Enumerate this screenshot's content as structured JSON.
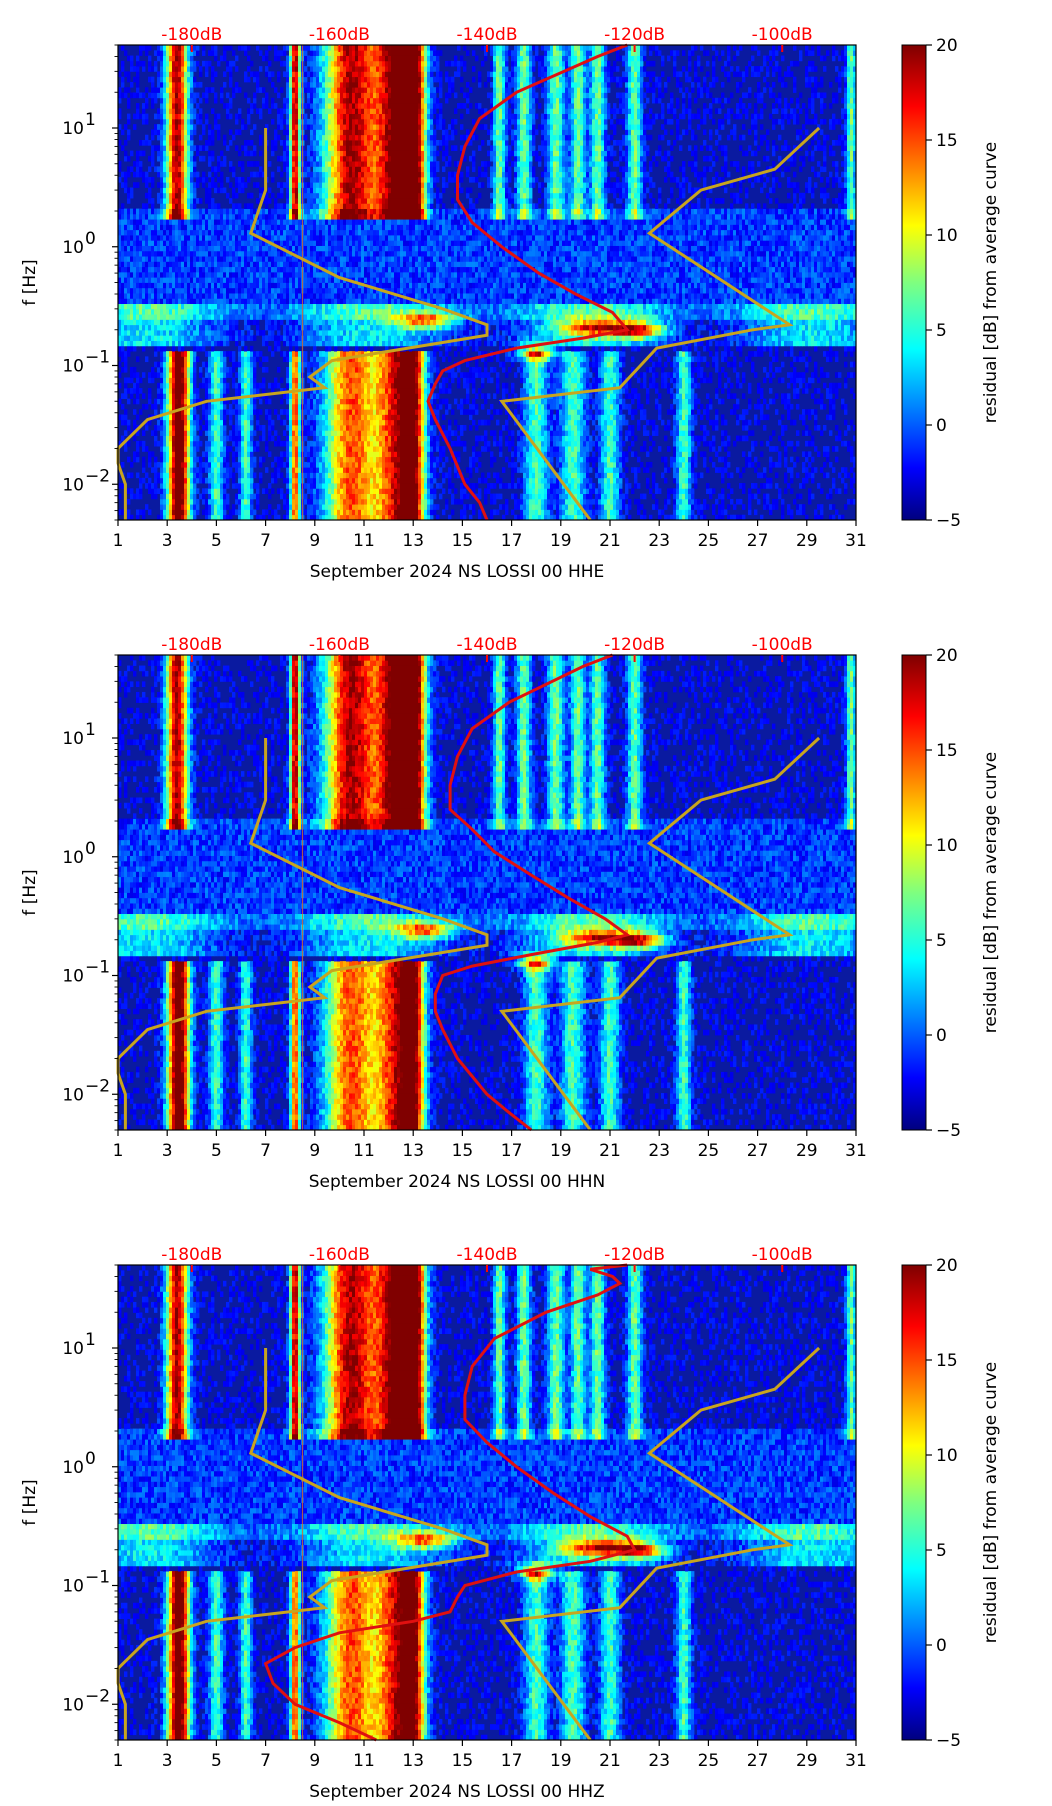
{
  "chart_data": [
    {
      "type": "heatmap",
      "title": "",
      "xlabel": "September 2024 NS LOSSI 00 HHE",
      "ylabel": "f [Hz]",
      "colorbar_label": "residual [dB] from average curve",
      "x_ticks": [
        "1",
        "3",
        "5",
        "7",
        "9",
        "11",
        "13",
        "15",
        "17",
        "19",
        "21",
        "23",
        "25",
        "27",
        "29",
        "31"
      ],
      "x_range": [
        1,
        31
      ],
      "y_scale": "log",
      "y_range": [
        0.005,
        50
      ],
      "y_ticks": [
        {
          "value": 0.01,
          "base": "10",
          "exp": "−2"
        },
        {
          "value": 0.1,
          "base": "10",
          "exp": "−1"
        },
        {
          "value": 1,
          "base": "10",
          "exp": "0"
        },
        {
          "value": 10,
          "base": "10",
          "exp": "1"
        }
      ],
      "top_axis_ticks": [
        "-180dB",
        "-160dB",
        "-140dB",
        "-120dB",
        "-100dB"
      ],
      "top_axis_values": [
        -180,
        -160,
        -140,
        -120,
        -100
      ],
      "color_range": [
        -5,
        20
      ],
      "colorbar_ticks": [
        "−5",
        "0",
        "5",
        "10",
        "15",
        "20"
      ],
      "colorbar_values": [
        -5,
        0,
        5,
        10,
        15,
        20
      ],
      "colormap": "jet",
      "red_curve_db_vs_freq": [
        [
          -140,
          0.005
        ],
        [
          -141,
          0.007
        ],
        [
          -143,
          0.01
        ],
        [
          -145,
          0.02
        ],
        [
          -147,
          0.035
        ],
        [
          -148,
          0.05
        ],
        [
          -147,
          0.07
        ],
        [
          -146,
          0.09
        ],
        [
          -143,
          0.11
        ],
        [
          -136,
          0.14
        ],
        [
          -127,
          0.17
        ],
        [
          -121,
          0.2
        ],
        [
          -123,
          0.28
        ],
        [
          -128,
          0.4
        ],
        [
          -133,
          0.6
        ],
        [
          -138,
          1.0
        ],
        [
          -142,
          1.6
        ],
        [
          -144,
          2.5
        ],
        [
          -144,
          4
        ],
        [
          -143,
          7
        ],
        [
          -141,
          12
        ],
        [
          -136,
          20
        ],
        [
          -125,
          40
        ],
        [
          -121,
          50
        ]
      ],
      "gold_curve_db_vs_freq": [
        [
          -189,
          0.005
        ],
        [
          -189,
          0.01
        ],
        [
          -190,
          0.015
        ],
        [
          -190,
          0.02
        ],
        [
          -186,
          0.035
        ],
        [
          -178,
          0.05
        ],
        [
          -162,
          0.065
        ],
        [
          -164,
          0.08
        ],
        [
          -161,
          0.11
        ],
        [
          -140,
          0.18
        ],
        [
          -140,
          0.22
        ],
        [
          -146,
          0.3
        ],
        [
          -160,
          0.55
        ],
        [
          -172,
          1.3
        ],
        [
          -170,
          3
        ],
        [
          -170,
          10
        ]
      ],
      "gold_curve2_db_vs_freq": [
        [
          -126,
          0.005
        ],
        [
          -138,
          0.05
        ],
        [
          -122,
          0.065
        ],
        [
          -117,
          0.14
        ],
        [
          -104,
          0.2
        ],
        [
          -99,
          0.22
        ],
        [
          -118,
          1.3
        ],
        [
          -111,
          3
        ],
        [
          -101,
          4.5
        ],
        [
          -95,
          10
        ]
      ],
      "vertical_marker_day": 8.5
    },
    {
      "type": "heatmap",
      "title": "",
      "xlabel": "September 2024 NS LOSSI 00 HHN",
      "ylabel": "f [Hz]",
      "colorbar_label": "residual [dB] from average curve",
      "x_ticks": [
        "1",
        "3",
        "5",
        "7",
        "9",
        "11",
        "13",
        "15",
        "17",
        "19",
        "21",
        "23",
        "25",
        "27",
        "29",
        "31"
      ],
      "x_range": [
        1,
        31
      ],
      "y_scale": "log",
      "y_range": [
        0.005,
        50
      ],
      "y_ticks": [
        {
          "value": 0.01,
          "base": "10",
          "exp": "−2"
        },
        {
          "value": 0.1,
          "base": "10",
          "exp": "−1"
        },
        {
          "value": 1,
          "base": "10",
          "exp": "0"
        },
        {
          "value": 10,
          "base": "10",
          "exp": "1"
        }
      ],
      "top_axis_ticks": [
        "-180dB",
        "-160dB",
        "-140dB",
        "-120dB",
        "-100dB"
      ],
      "top_axis_values": [
        -180,
        -160,
        -140,
        -120,
        -100
      ],
      "color_range": [
        -5,
        20
      ],
      "colorbar_ticks": [
        "−5",
        "0",
        "5",
        "10",
        "15",
        "20"
      ],
      "colorbar_values": [
        -5,
        0,
        5,
        10,
        15,
        20
      ],
      "colormap": "jet",
      "red_curve_db_vs_freq": [
        [
          -134,
          0.005
        ],
        [
          -137,
          0.007
        ],
        [
          -140,
          0.01
        ],
        [
          -144,
          0.02
        ],
        [
          -146,
          0.035
        ],
        [
          -147,
          0.05
        ],
        [
          -147,
          0.07
        ],
        [
          -146,
          0.1
        ],
        [
          -142,
          0.12
        ],
        [
          -134,
          0.15
        ],
        [
          -125,
          0.19
        ],
        [
          -121,
          0.22
        ],
        [
          -124,
          0.3
        ],
        [
          -129,
          0.45
        ],
        [
          -134,
          0.7
        ],
        [
          -139,
          1.1
        ],
        [
          -142,
          1.7
        ],
        [
          -145,
          2.5
        ],
        [
          -145,
          4
        ],
        [
          -144,
          7
        ],
        [
          -142,
          12
        ],
        [
          -137,
          20
        ],
        [
          -127,
          40
        ],
        [
          -123,
          50
        ]
      ],
      "gold_curve_db_vs_freq": [
        [
          -189,
          0.005
        ],
        [
          -189,
          0.01
        ],
        [
          -190,
          0.015
        ],
        [
          -190,
          0.02
        ],
        [
          -186,
          0.035
        ],
        [
          -178,
          0.05
        ],
        [
          -162,
          0.065
        ],
        [
          -164,
          0.08
        ],
        [
          -161,
          0.11
        ],
        [
          -140,
          0.18
        ],
        [
          -140,
          0.22
        ],
        [
          -146,
          0.3
        ],
        [
          -160,
          0.55
        ],
        [
          -172,
          1.3
        ],
        [
          -170,
          3
        ],
        [
          -170,
          10
        ]
      ],
      "gold_curve2_db_vs_freq": [
        [
          -126,
          0.005
        ],
        [
          -138,
          0.05
        ],
        [
          -122,
          0.065
        ],
        [
          -117,
          0.14
        ],
        [
          -104,
          0.2
        ],
        [
          -99,
          0.22
        ],
        [
          -118,
          1.3
        ],
        [
          -111,
          3
        ],
        [
          -101,
          4.5
        ],
        [
          -95,
          10
        ]
      ],
      "vertical_marker_day": 8.5
    },
    {
      "type": "heatmap",
      "title": "",
      "xlabel": "September 2024 NS LOSSI 00 HHZ",
      "ylabel": "f [Hz]",
      "colorbar_label": "residual [dB] from average curve",
      "x_ticks": [
        "1",
        "3",
        "5",
        "7",
        "9",
        "11",
        "13",
        "15",
        "17",
        "19",
        "21",
        "23",
        "25",
        "27",
        "29",
        "31"
      ],
      "x_range": [
        1,
        31
      ],
      "y_scale": "log",
      "y_range": [
        0.005,
        50
      ],
      "y_ticks": [
        {
          "value": 0.01,
          "base": "10",
          "exp": "−2"
        },
        {
          "value": 0.1,
          "base": "10",
          "exp": "−1"
        },
        {
          "value": 1,
          "base": "10",
          "exp": "0"
        },
        {
          "value": 10,
          "base": "10",
          "exp": "1"
        }
      ],
      "top_axis_ticks": [
        "-180dB",
        "-160dB",
        "-140dB",
        "-120dB",
        "-100dB"
      ],
      "top_axis_values": [
        -180,
        -160,
        -140,
        -120,
        -100
      ],
      "color_range": [
        -5,
        20
      ],
      "colorbar_ticks": [
        "−5",
        "0",
        "5",
        "10",
        "15",
        "20"
      ],
      "colorbar_values": [
        -5,
        0,
        5,
        10,
        15,
        20
      ],
      "colormap": "jet",
      "red_curve_db_vs_freq": [
        [
          -155,
          0.005
        ],
        [
          -160,
          0.007
        ],
        [
          -166,
          0.01
        ],
        [
          -169,
          0.015
        ],
        [
          -170,
          0.022
        ],
        [
          -166,
          0.03
        ],
        [
          -160,
          0.04
        ],
        [
          -150,
          0.05
        ],
        [
          -145,
          0.06
        ],
        [
          -144,
          0.08
        ],
        [
          -143,
          0.1
        ],
        [
          -136,
          0.13
        ],
        [
          -126,
          0.16
        ],
        [
          -120,
          0.2
        ],
        [
          -121,
          0.26
        ],
        [
          -126,
          0.38
        ],
        [
          -131,
          0.6
        ],
        [
          -136,
          1.0
        ],
        [
          -140,
          1.6
        ],
        [
          -143,
          2.5
        ],
        [
          -143,
          4
        ],
        [
          -142,
          7
        ],
        [
          -139,
          12
        ],
        [
          -132,
          20
        ],
        [
          -125,
          28
        ],
        [
          -122,
          35
        ],
        [
          -123,
          40
        ],
        [
          -126,
          46
        ],
        [
          -121,
          50
        ]
      ],
      "gold_curve_db_vs_freq": [
        [
          -189,
          0.005
        ],
        [
          -189,
          0.01
        ],
        [
          -190,
          0.015
        ],
        [
          -190,
          0.02
        ],
        [
          -186,
          0.035
        ],
        [
          -178,
          0.05
        ],
        [
          -162,
          0.065
        ],
        [
          -164,
          0.08
        ],
        [
          -161,
          0.11
        ],
        [
          -140,
          0.18
        ],
        [
          -140,
          0.22
        ],
        [
          -146,
          0.3
        ],
        [
          -160,
          0.55
        ],
        [
          -172,
          1.3
        ],
        [
          -170,
          3
        ],
        [
          -170,
          10
        ]
      ],
      "gold_curve2_db_vs_freq": [
        [
          -126,
          0.005
        ],
        [
          -138,
          0.05
        ],
        [
          -122,
          0.065
        ],
        [
          -117,
          0.14
        ],
        [
          -104,
          0.2
        ],
        [
          -99,
          0.22
        ],
        [
          -118,
          1.3
        ],
        [
          -111,
          3
        ],
        [
          -101,
          4.5
        ],
        [
          -95,
          10
        ]
      ],
      "vertical_marker_day": 8.5
    }
  ]
}
